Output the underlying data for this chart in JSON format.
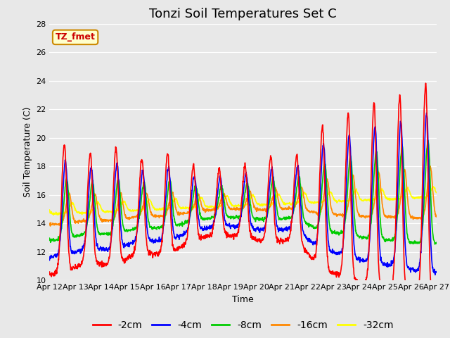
{
  "title": "Tonzi Soil Temperatures Set C",
  "xlabel": "Time",
  "ylabel": "Soil Temperature (C)",
  "ylim": [
    10,
    28
  ],
  "n_days": 15,
  "x_tick_labels": [
    "Apr 12",
    "Apr 13",
    "Apr 14",
    "Apr 15",
    "Apr 16",
    "Apr 17",
    "Apr 18",
    "Apr 19",
    "Apr 20",
    "Apr 21",
    "Apr 22",
    "Apr 23",
    "Apr 24",
    "Apr 25",
    "Apr 26",
    "Apr 27"
  ],
  "series_colors": [
    "#ff0000",
    "#0000ff",
    "#00cc00",
    "#ff8800",
    "#ffff00"
  ],
  "series_labels": [
    "-2cm",
    "-4cm",
    "-8cm",
    "-16cm",
    "-32cm"
  ],
  "legend_label": "TZ_fmet",
  "legend_bg": "#ffffcc",
  "legend_border": "#cc8800",
  "bg_color": "#e8e8e8",
  "plot_bg": "#e8e8e8",
  "title_fontsize": 13,
  "axis_fontsize": 9,
  "tick_fontsize": 8,
  "legend_fontsize": 10,
  "line_width": 1.2,
  "pts_per_day": 96
}
